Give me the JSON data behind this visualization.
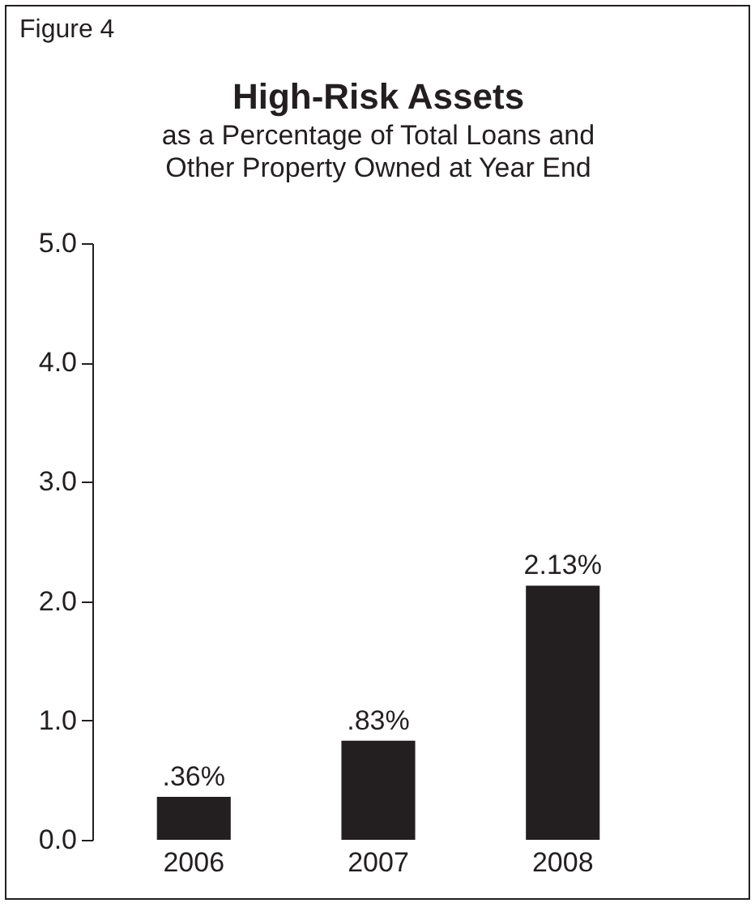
{
  "chart_data": {
    "type": "bar",
    "title": "High-Risk Assets",
    "subtitle": "as a Percentage of Total Loans and Other Property Owned at Year End",
    "annotations": [
      "Figure 4"
    ],
    "categories": [
      "2006",
      "2007",
      "2008"
    ],
    "values": [
      0.36,
      0.83,
      2.13
    ],
    "value_labels": [
      ".36%",
      ".83%",
      "2.13%"
    ],
    "color": "#231f20",
    "ylim": [
      0,
      5
    ],
    "yticks": [
      {
        "value": 0,
        "label": "0.0"
      },
      {
        "value": 1,
        "label": "1.0"
      },
      {
        "value": 2,
        "label": "2.0"
      },
      {
        "value": 3,
        "label": "3.0"
      },
      {
        "value": 4,
        "label": "4.0"
      },
      {
        "value": 5,
        "label": "5.0"
      }
    ],
    "grid": false
  }
}
